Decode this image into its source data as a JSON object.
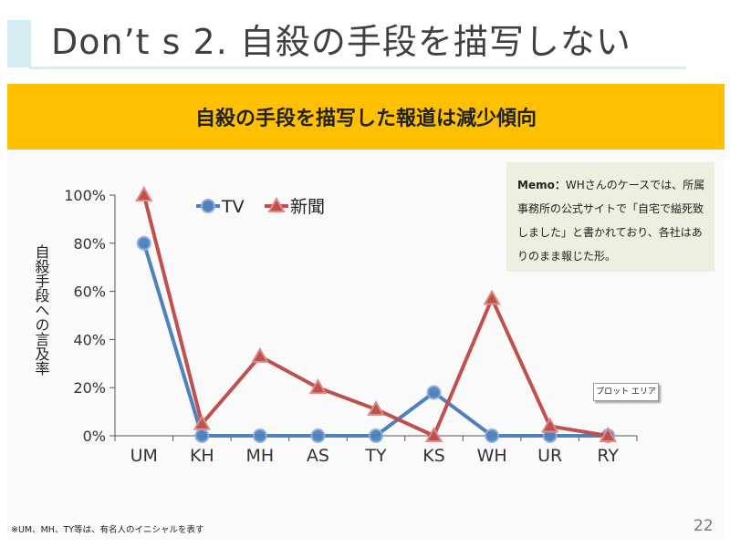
{
  "slide": {
    "title": "Don’t s 2. 自殺の手段を描写しない",
    "banner": "自殺の手段を描写した報道は減少傾向",
    "memo_head": "Memo：",
    "memo_body": "WHさんのケースでは、所属事務所の公式サイトで「自宅で縊死致しました」と書かれており、各社はありのまま報じた形。",
    "footnote": "※UM、MH、TY等は、有名人のイニシャルを表す",
    "page_number": "22",
    "tooltip": "プロット エリア"
  },
  "colors": {
    "tv": "#4f81bd",
    "newspaper": "#c0504d",
    "banner": "#ffc000",
    "memo_bg": "#ebf1de",
    "accent": "#d5ecf2"
  },
  "chart_data": {
    "type": "line",
    "categories": [
      "UM",
      "KH",
      "MH",
      "AS",
      "TY",
      "KS",
      "WH",
      "UR",
      "RY"
    ],
    "series": [
      {
        "name": "TV",
        "marker": "circle",
        "values": [
          0.8,
          0.0,
          0.0,
          0.0,
          0.0,
          0.18,
          0.0,
          0.0,
          0.0
        ]
      },
      {
        "name": "新聞",
        "marker": "triangle",
        "values": [
          1.0,
          0.05,
          0.33,
          0.2,
          0.11,
          0.0,
          0.57,
          0.04,
          0.0
        ]
      }
    ],
    "ylabel": "自殺手段への言及率",
    "ylim": [
      0,
      1
    ],
    "yticks": [
      "0%",
      "20%",
      "40%",
      "60%",
      "80%",
      "100%"
    ],
    "legend_position": "top"
  }
}
